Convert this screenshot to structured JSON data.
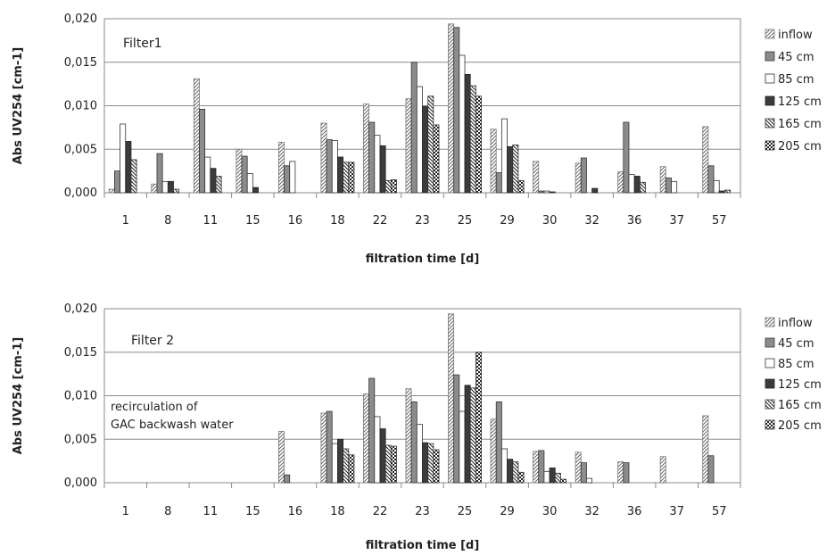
{
  "chart_data": [
    {
      "type": "bar",
      "title": "",
      "panel_label": "Filter1",
      "xlabel": "filtration time [d]",
      "ylabel": "Abs UV254 [cm-1]",
      "ylim": [
        0,
        0.02
      ],
      "yticks": [
        "0,000",
        "0,005",
        "0,010",
        "0,015",
        "0,020"
      ],
      "grid": "horizontal",
      "legend": "right",
      "categories": [
        "1",
        "8",
        "11",
        "15",
        "16",
        "18",
        "22",
        "23",
        "25",
        "29",
        "30",
        "32",
        "36",
        "37",
        "57"
      ],
      "series": [
        {
          "name": "inflow",
          "values": [
            0.0004,
            0.001,
            0.0131,
            0.005,
            0.0058,
            0.008,
            0.0102,
            0.0108,
            0.0194,
            0.0073,
            0.0036,
            0.0034,
            0.0024,
            0.003,
            0.0076
          ]
        },
        {
          "name": "45 cm",
          "values": [
            0.0025,
            0.0045,
            0.0096,
            0.0042,
            0.0031,
            0.0061,
            0.0081,
            0.015,
            0.019,
            0.0023,
            0.0002,
            0.004,
            0.0081,
            0.0017,
            0.0031
          ]
        },
        {
          "name": "85 cm",
          "values": [
            0.0079,
            0.0013,
            0.0041,
            0.0022,
            0.0036,
            0.006,
            0.0066,
            0.0122,
            0.0158,
            0.0085,
            0.0002,
            0.0,
            0.0021,
            0.0013,
            0.0014
          ]
        },
        {
          "name": "125 cm",
          "values": [
            0.0059,
            0.0013,
            0.0028,
            0.0006,
            0.0,
            0.0041,
            0.0054,
            0.0099,
            0.0136,
            0.0053,
            0.0001,
            0.0005,
            0.0019,
            0.0,
            0.0002
          ]
        },
        {
          "name": "165 cm",
          "values": [
            0.0038,
            0.0004,
            0.0019,
            0.0,
            0.0,
            0.0035,
            0.0014,
            0.0111,
            0.0123,
            0.0055,
            0.0,
            0.0,
            0.0012,
            0.0,
            0.0003
          ]
        },
        {
          "name": "205 cm",
          "values": [
            0.0,
            0.0,
            0.0,
            0.0,
            0.0,
            0.0035,
            0.0015,
            0.0078,
            0.0111,
            0.0014,
            0.0,
            0.0,
            0.0,
            0.0,
            0.0
          ]
        }
      ]
    },
    {
      "type": "bar",
      "title": "",
      "panel_label": "Filter 2",
      "annotation": [
        "recirculation of",
        "GAC backwash water"
      ],
      "xlabel": "filtration time [d]",
      "ylabel": "Abs UV254 [cm-1]",
      "ylim": [
        0,
        0.02
      ],
      "yticks": [
        "0,000",
        "0,005",
        "0,010",
        "0,015",
        "0,020"
      ],
      "grid": "horizontal",
      "legend": "right",
      "categories": [
        "1",
        "8",
        "11",
        "15",
        "16",
        "18",
        "22",
        "23",
        "25",
        "29",
        "30",
        "32",
        "36",
        "37",
        "57"
      ],
      "series": [
        {
          "name": "inflow",
          "values": [
            0,
            0,
            0,
            0,
            0.0059,
            0.008,
            0.0102,
            0.0108,
            0.0194,
            0.0073,
            0.0036,
            0.0035,
            0.0024,
            0.003,
            0.0077
          ]
        },
        {
          "name": "45 cm",
          "values": [
            0,
            0,
            0,
            0,
            0.0009,
            0.0082,
            0.012,
            0.0093,
            0.0124,
            0.0093,
            0.0037,
            0.0023,
            0.0023,
            0.0,
            0.0031
          ]
        },
        {
          "name": "85 cm",
          "values": [
            0,
            0,
            0,
            0,
            0.0,
            0.0045,
            0.0076,
            0.0067,
            0.0082,
            0.0039,
            0.0013,
            0.0005,
            0.0,
            0.0,
            0.0
          ]
        },
        {
          "name": "125 cm",
          "values": [
            0,
            0,
            0,
            0,
            0.0,
            0.005,
            0.0062,
            0.0046,
            0.0112,
            0.0027,
            0.0017,
            0.0,
            0.0,
            0.0,
            0.0
          ]
        },
        {
          "name": "165 cm",
          "values": [
            0,
            0,
            0,
            0,
            0.0,
            0.0039,
            0.0043,
            0.0045,
            0.0109,
            0.0024,
            0.0011,
            0.0,
            0.0,
            0.0,
            0.0
          ]
        },
        {
          "name": "205 cm",
          "values": [
            0,
            0,
            0,
            0,
            0.0,
            0.0032,
            0.0042,
            0.0038,
            0.015,
            0.0012,
            0.0004,
            0.0,
            0.0,
            0.0,
            0.0
          ]
        }
      ]
    }
  ]
}
